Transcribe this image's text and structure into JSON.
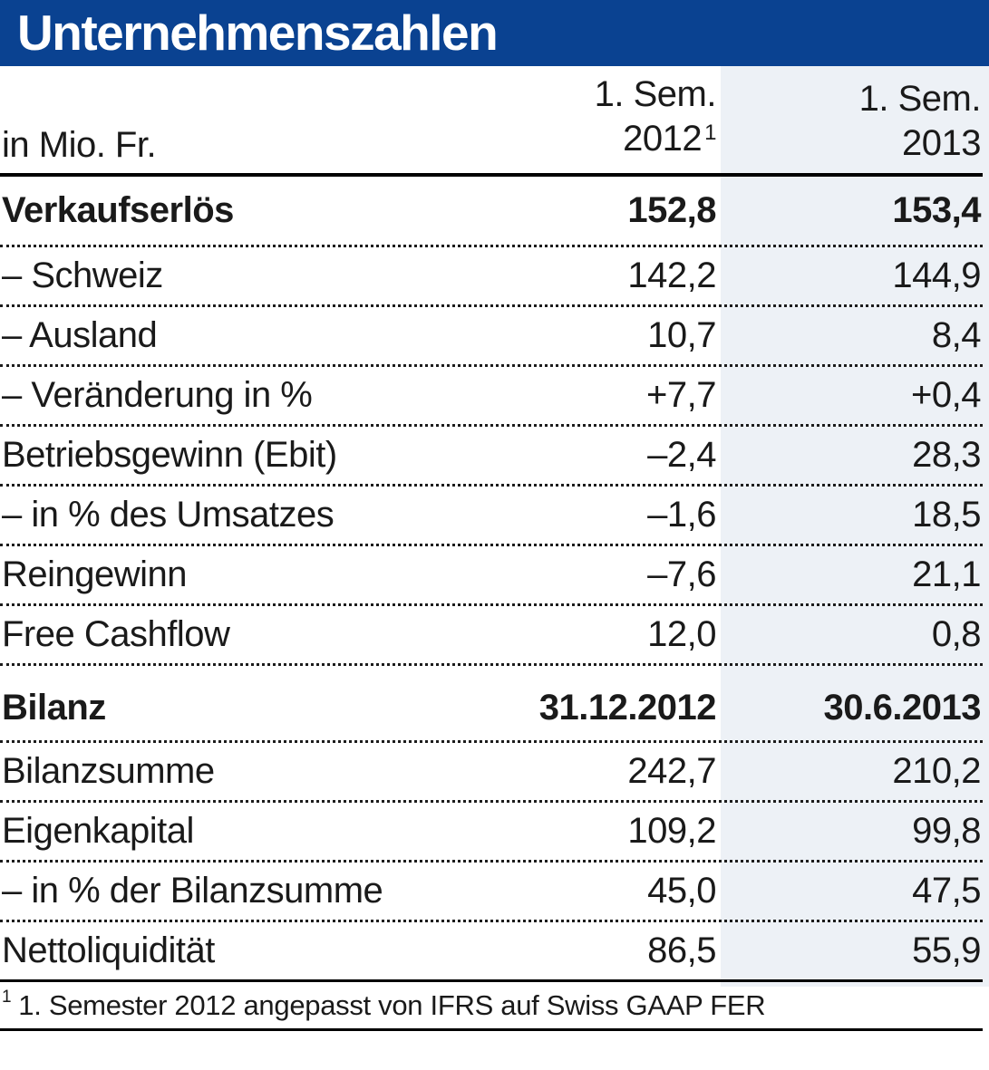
{
  "colors": {
    "header_bg": "#0a4291",
    "highlight": "#edf1f6",
    "line": "#000000",
    "text": "#1a1a1a"
  },
  "chart_data": {
    "type": "table",
    "title": "Unternehmenszahlen",
    "unit_label": "in Mio. Fr.",
    "col_headers": [
      {
        "line1": "1. Sem.",
        "line2": "2012",
        "sup": "1"
      },
      {
        "line1": "1. Sem.",
        "line2": "2013",
        "sup": ""
      }
    ],
    "rows": [
      {
        "label": "Verkaufserlös",
        "v2012": "152,8",
        "v2013": "153,4",
        "emphasis": true
      },
      {
        "label": "– Schweiz",
        "v2012": "142,2",
        "v2013": "144,9",
        "emphasis": false
      },
      {
        "label": "– Ausland",
        "v2012": "10,7",
        "v2013": "8,4",
        "emphasis": false
      },
      {
        "label": "– Veränderung in %",
        "v2012": "+7,7",
        "v2013": "+0,4",
        "emphasis": false
      },
      {
        "label": "Betriebsgewinn (Ebit)",
        "v2012": "–2,4",
        "v2013": "28,3",
        "emphasis": false
      },
      {
        "label": "– in % des Umsatzes",
        "v2012": "–1,6",
        "v2013": "18,5",
        "emphasis": false
      },
      {
        "label": "Reingewinn",
        "v2012": "–7,6",
        "v2013": "21,1",
        "emphasis": false
      },
      {
        "label": "Free Cashflow",
        "v2012": "12,0",
        "v2013": "0,8",
        "emphasis": false
      },
      {
        "label": "Bilanz",
        "v2012": "31.12.2012",
        "v2013": "30.6.2013",
        "emphasis": true
      },
      {
        "label": "Bilanzsumme",
        "v2012": "242,7",
        "v2013": "210,2",
        "emphasis": false
      },
      {
        "label": "Eigenkapital",
        "v2012": "109,2",
        "v2013": "99,8",
        "emphasis": false
      },
      {
        "label": "– in % der Bilanzsumme",
        "v2012": "45,0",
        "v2013": "47,5",
        "emphasis": false
      },
      {
        "label": "Nettoliquidität",
        "v2012": "86,5",
        "v2013": "55,9",
        "emphasis": false
      }
    ],
    "footnote": {
      "sup": "1",
      "text": "1. Semester 2012 angepasst von IFRS auf Swiss GAAP FER"
    }
  }
}
